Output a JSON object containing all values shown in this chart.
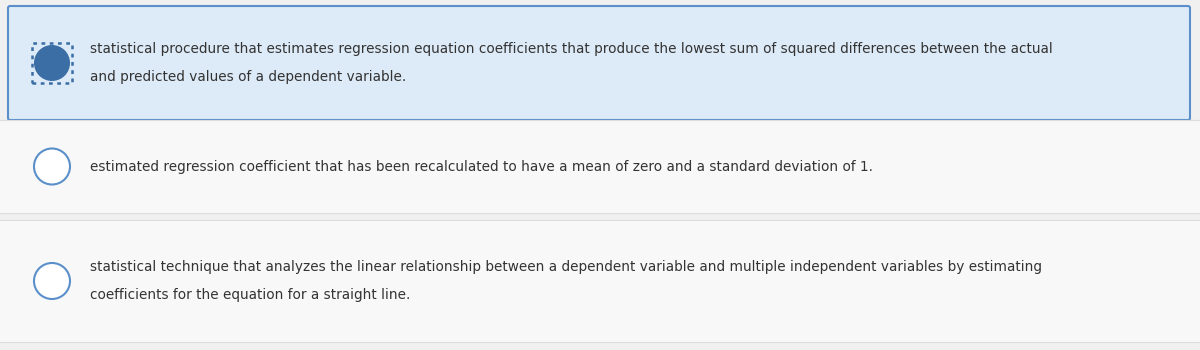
{
  "background_color": "#f0f0f0",
  "items": [
    {
      "text_line1": "statistical procedure that estimates regression equation coefficients that produce the lowest sum of squared differences between the actual",
      "text_line2": "and predicted values of a dependent variable.",
      "selected": true,
      "box_bg": "#ddeaf7",
      "box_border": "#5b8fc9",
      "circle_fill": "#3a6ea5",
      "circle_border": "#3a6ea5",
      "has_box": true
    },
    {
      "text_line1": "estimated regression coefficient that has been recalculated to have a mean of zero and a standard deviation of 1.",
      "text_line2": "",
      "selected": false,
      "box_bg": "#f5f5f5",
      "box_border": "#dddddd",
      "circle_fill": "#ffffff",
      "circle_border": "#5b8fc9",
      "has_box": false
    },
    {
      "text_line1": "statistical technique that analyzes the linear relationship between a dependent variable and multiple independent variables by estimating",
      "text_line2": "coefficients for the equation for a straight line.",
      "selected": false,
      "box_bg": "#f5f5f5",
      "box_border": "#dddddd",
      "circle_fill": "#ffffff",
      "circle_border": "#5b8fc9",
      "has_box": false
    }
  ],
  "font_size": 9.8,
  "text_color": "#333333",
  "separator_color": "#dddddd",
  "fig_width": 12.0,
  "fig_height": 3.5,
  "dpi": 100
}
